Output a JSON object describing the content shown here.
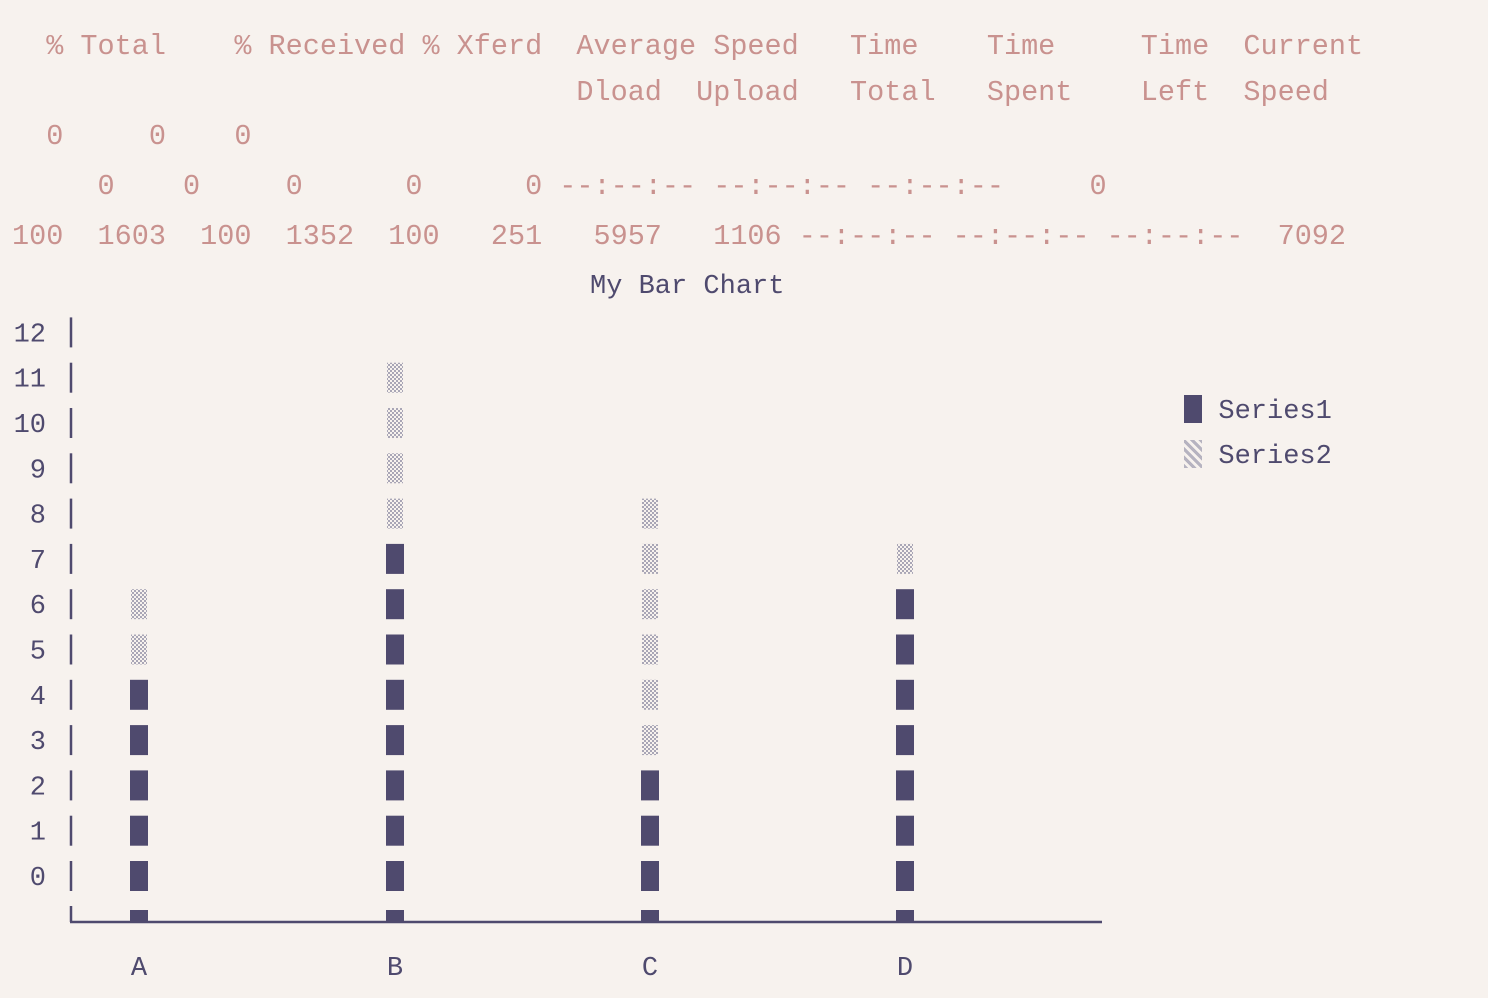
{
  "terminal": {
    "lines": [
      "  % Total    % Received % Xferd  Average Speed   Time    Time     Time  Current",
      "                                 Dload  Upload   Total   Spent    Left  Speed",
      "  0     0    0",
      "     0    0     0      0      0 --:--:-- --:--:-- --:--:--     0",
      "100  1603  100  1352  100   251   5957   1106 --:--:-- --:--:-- --:--:--  7092"
    ]
  },
  "chart_data": {
    "type": "bar",
    "stacked": true,
    "title": "My Bar Chart",
    "categories": [
      "A",
      "B",
      "C",
      "D"
    ],
    "series": [
      {
        "name": "Series1",
        "values": [
          5,
          8,
          3,
          7
        ],
        "color": "#4f4a6e",
        "glyph": "█"
      },
      {
        "name": "Series2",
        "values": [
          2,
          4,
          6,
          1
        ],
        "color": "#9a97a8",
        "glyph": "░"
      }
    ],
    "y_ticks": [
      "0",
      "1",
      "2",
      "3",
      "4",
      "5",
      "6",
      "7",
      "8",
      "9",
      "10",
      "11",
      "12"
    ],
    "ylim": [
      0,
      12
    ],
    "legend": "top-right",
    "grid": false
  }
}
